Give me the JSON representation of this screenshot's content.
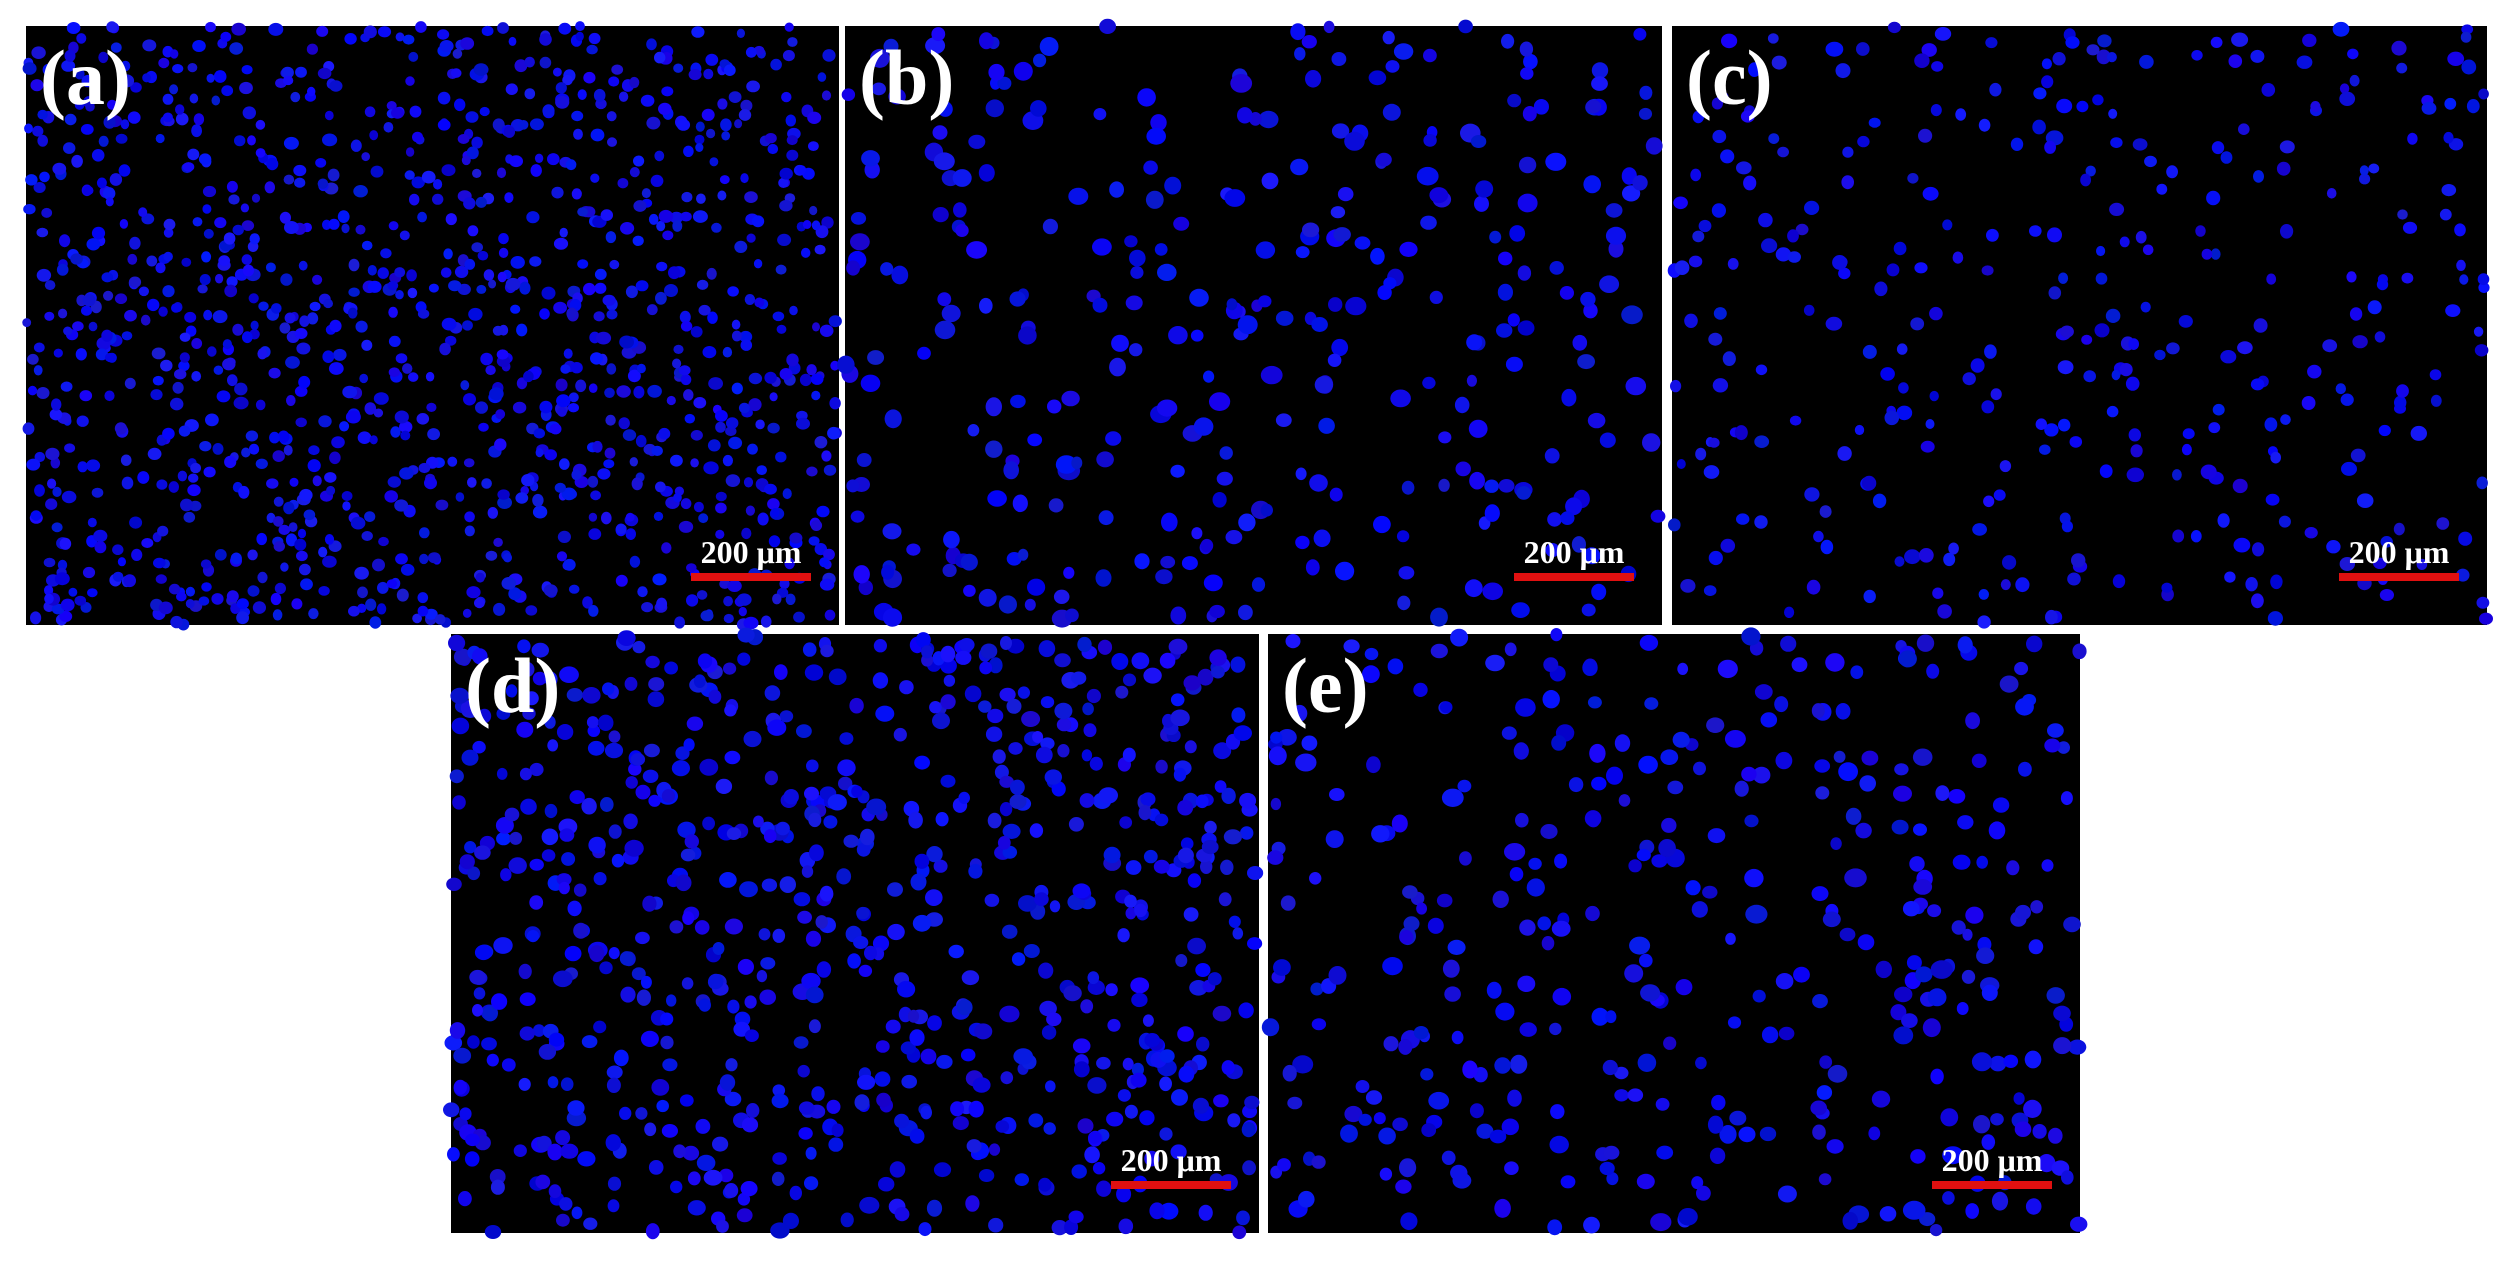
{
  "panels": [
    {
      "label": "(a)",
      "scale_bar": "200 μm"
    },
    {
      "label": "(b)",
      "scale_bar": "200 μm"
    },
    {
      "label": "(c)",
      "scale_bar": "200 μm"
    },
    {
      "label": "(d)",
      "scale_bar": "200 μm"
    },
    {
      "label": "(e)",
      "scale_bar": "200 μm"
    }
  ]
}
